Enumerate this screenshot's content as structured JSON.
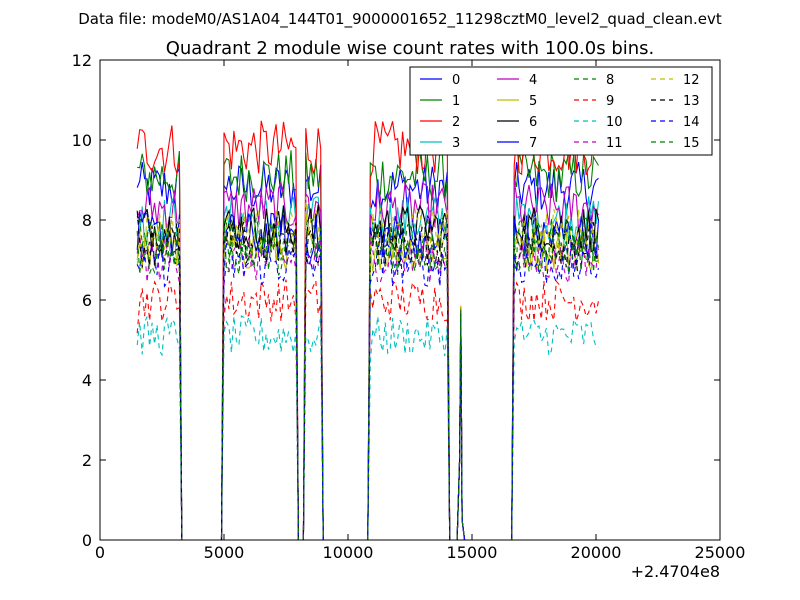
{
  "suptitle": "Data file: modeM0/AS1A04_144T01_9000001652_11298cztM0_level2_quad_clean.evt",
  "chart_data": {
    "type": "line",
    "title": "Quadrant 2 module wise count rates with 100.0s bins.",
    "xlabel": "",
    "ylabel": "",
    "x_offset_label": "+2.4704e8",
    "xlim": [
      0,
      25000
    ],
    "ylim": [
      0,
      12
    ],
    "xticks": [
      0,
      5000,
      10000,
      15000,
      20000,
      25000
    ],
    "yticks": [
      0,
      2,
      4,
      6,
      8,
      10,
      12
    ],
    "grid": false,
    "legend": {
      "placement": "top-right",
      "columns": 4
    },
    "series": [
      {
        "name": "0",
        "color": "#0000ff",
        "dash": "solid",
        "level": 8.8
      },
      {
        "name": "1",
        "color": "#008000",
        "dash": "solid",
        "level": 9.1
      },
      {
        "name": "2",
        "color": "#ff0000",
        "dash": "solid",
        "level": 9.8
      },
      {
        "name": "3",
        "color": "#00bfbf",
        "dash": "solid",
        "level": 8.0
      },
      {
        "name": "4",
        "color": "#bf00bf",
        "dash": "solid",
        "level": 8.3
      },
      {
        "name": "5",
        "color": "#bfbf00",
        "dash": "solid",
        "level": 7.3
      },
      {
        "name": "6",
        "color": "#000000",
        "dash": "solid",
        "level": 7.8
      },
      {
        "name": "7",
        "color": "#0000ff",
        "dash": "solid",
        "level": 7.6
      },
      {
        "name": "8",
        "color": "#008000",
        "dash": "dashed",
        "level": 7.5
      },
      {
        "name": "9",
        "color": "#ff0000",
        "dash": "dashed",
        "level": 6.0
      },
      {
        "name": "10",
        "color": "#00bfbf",
        "dash": "dashed",
        "level": 5.1
      },
      {
        "name": "11",
        "color": "#bf00bf",
        "dash": "dashed",
        "level": 7.0
      },
      {
        "name": "12",
        "color": "#bfbf00",
        "dash": "dashed",
        "level": 7.7
      },
      {
        "name": "13",
        "color": "#000000",
        "dash": "dashed",
        "level": 7.4
      },
      {
        "name": "14",
        "color": "#0000ff",
        "dash": "dashed",
        "level": 6.9
      },
      {
        "name": "15",
        "color": "#008000",
        "dash": "dashed",
        "level": 7.2
      }
    ],
    "active_intervals": [
      [
        1500,
        3200
      ],
      [
        5000,
        7900
      ],
      [
        8300,
        8900
      ],
      [
        10900,
        14000
      ],
      [
        14500,
        14600
      ],
      [
        16700,
        20100
      ]
    ]
  }
}
